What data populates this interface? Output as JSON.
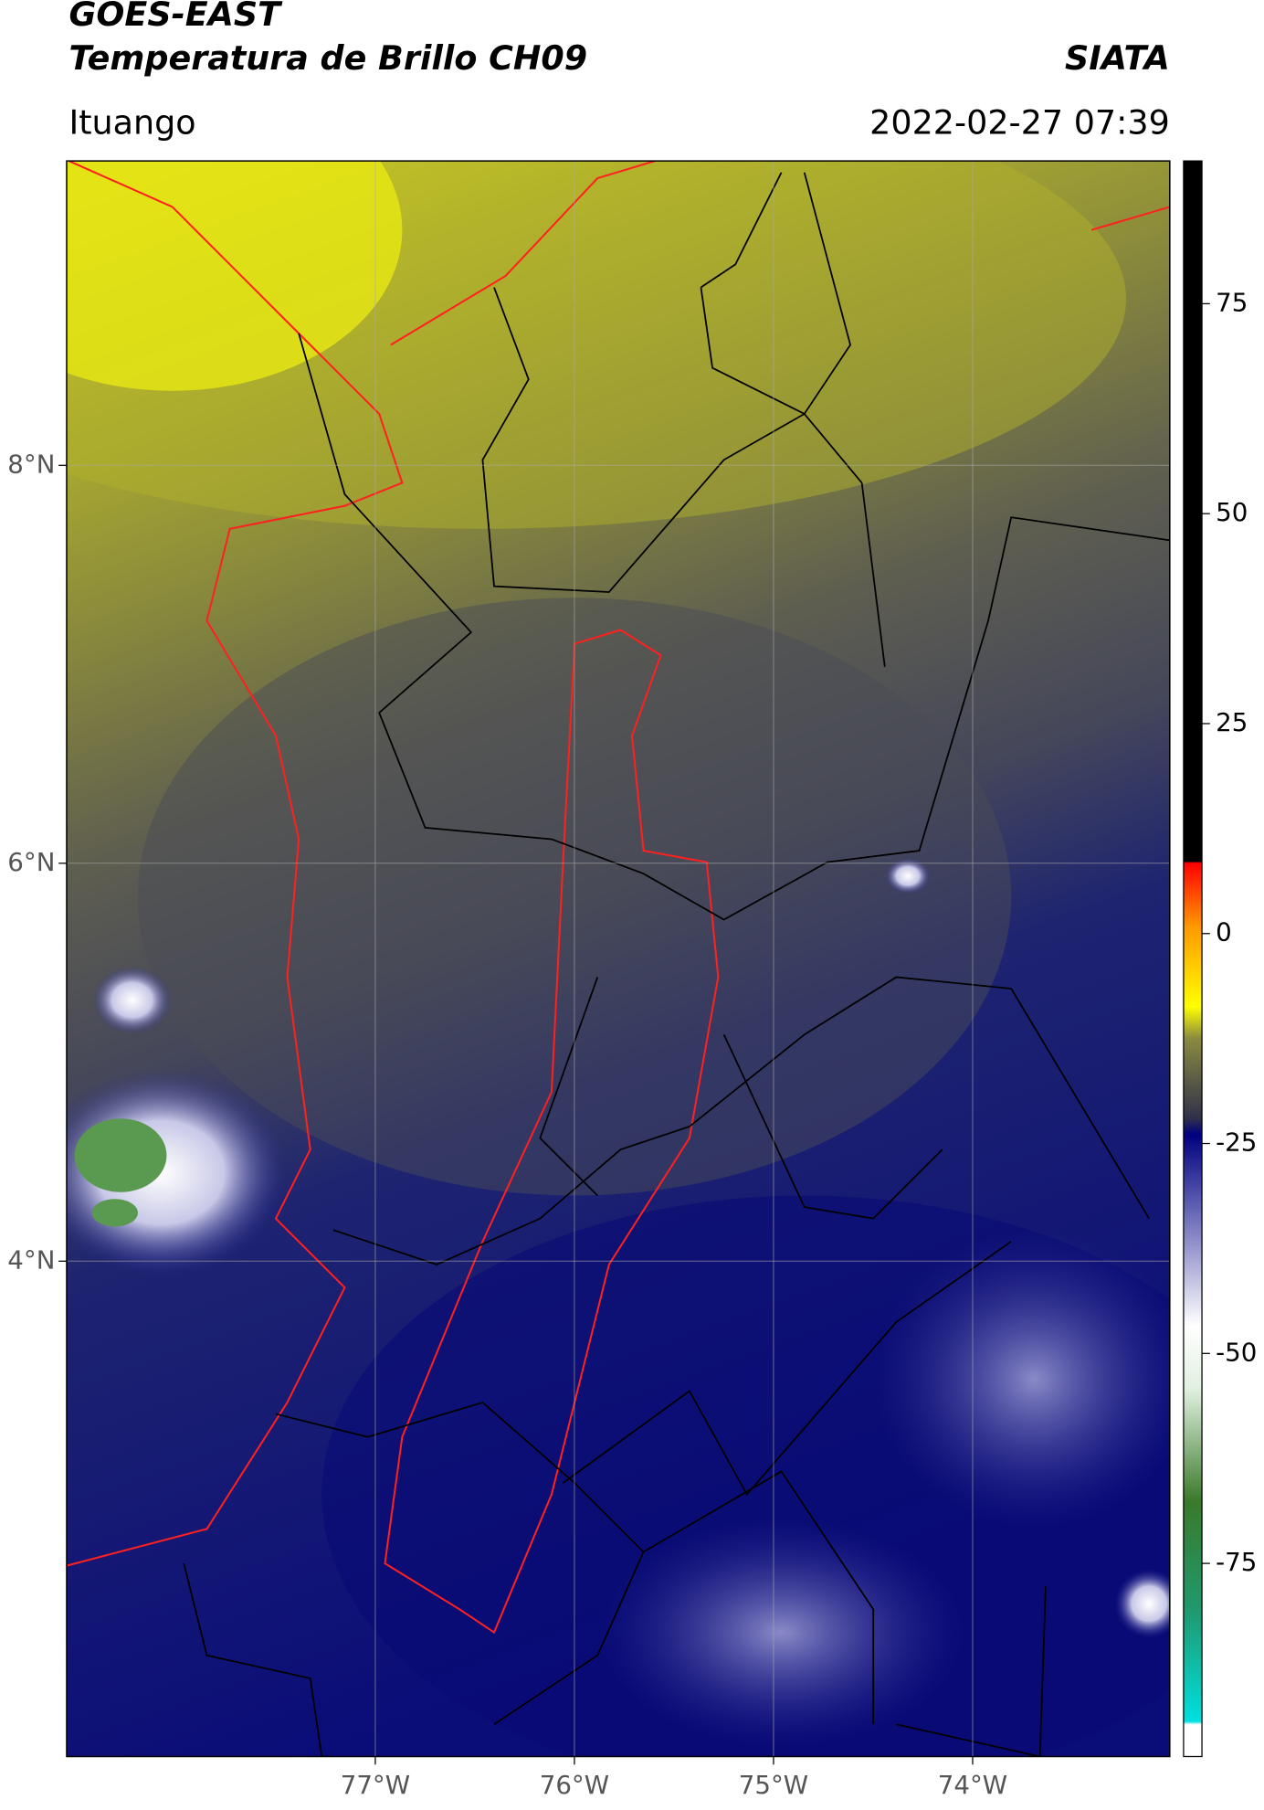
{
  "title": "GOES-EAST",
  "subtitle": "Temperatura de Brillo CH09",
  "source": "SIATA",
  "location": "Ituango",
  "timestamp": "2022-02-27 07:39",
  "map": {
    "lonlim": [
      -78.55,
      -73.01
    ],
    "latlim": [
      1.51,
      9.53
    ],
    "lon_ticks": [
      {
        "value": -77,
        "label": "77°W"
      },
      {
        "value": -76,
        "label": "76°W"
      },
      {
        "value": -75,
        "label": "75°W"
      },
      {
        "value": -74,
        "label": "74°W"
      }
    ],
    "lat_ticks": [
      {
        "value": 8,
        "label": "8°N"
      },
      {
        "value": 6,
        "label": "6°N"
      },
      {
        "value": 4,
        "label": "4°N"
      }
    ],
    "grid": true
  },
  "colorbar": {
    "range": [
      -98,
      92
    ],
    "ticks": [
      75,
      50,
      25,
      0,
      -25,
      -50,
      -75
    ]
  }
}
